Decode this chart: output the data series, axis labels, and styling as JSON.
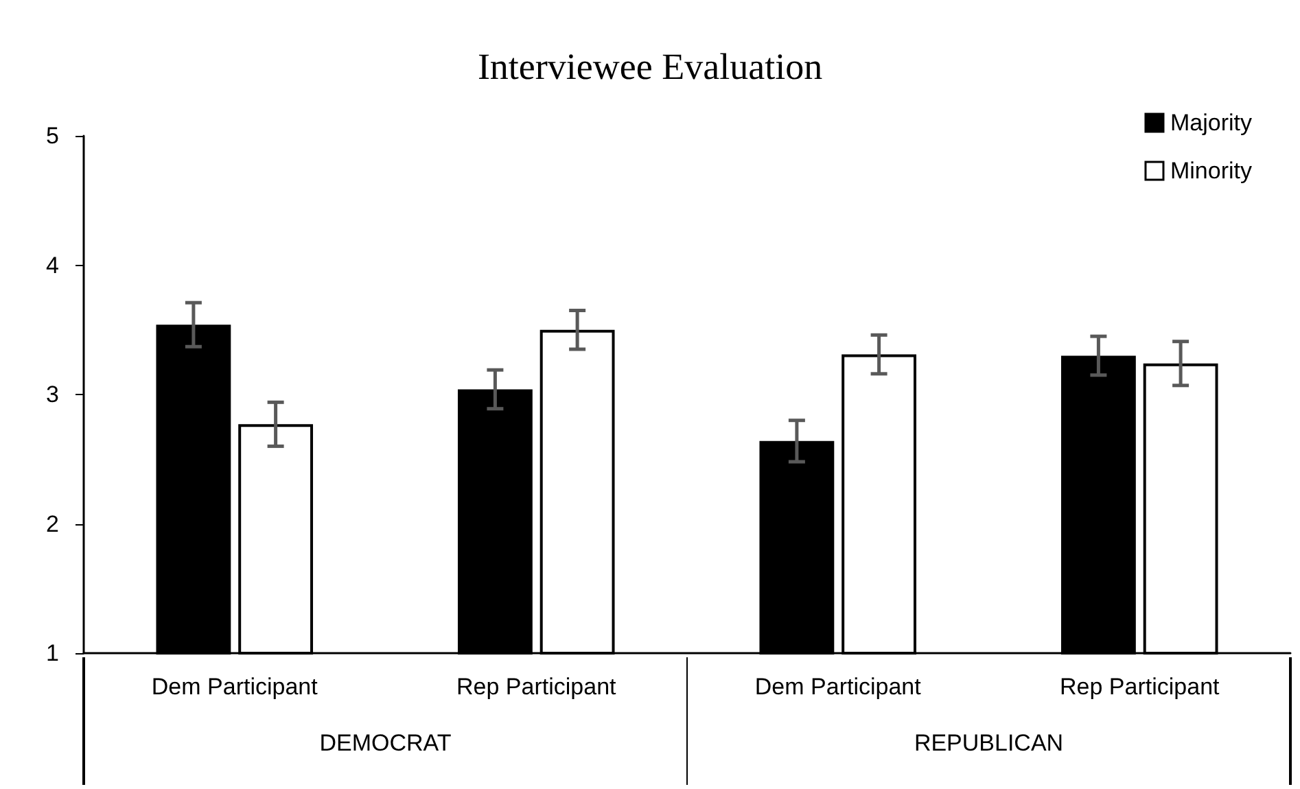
{
  "chart_data": {
    "type": "bar",
    "title": "Interviewee Evaluation",
    "categories": [
      "Dem Participant",
      "Rep Participant",
      "Dem Participant",
      "Rep Participant"
    ],
    "series": [
      {
        "name": "Majority",
        "color": "#000000",
        "values": [
          3.54,
          3.04,
          2.64,
          3.3
        ],
        "errors": [
          0.17,
          0.15,
          0.16,
          0.15
        ]
      },
      {
        "name": "Minority",
        "color": "#ffffff",
        "values": [
          2.77,
          3.5,
          3.31,
          3.24
        ],
        "errors": [
          0.17,
          0.15,
          0.15,
          0.17
        ]
      }
    ],
    "annotations": [
      "DEMOCRAT",
      "REPUBLICAN"
    ],
    "ylim": [
      1,
      5
    ],
    "yticks": [
      1,
      2,
      3,
      4,
      5
    ],
    "grid": false,
    "legend": "top right"
  }
}
